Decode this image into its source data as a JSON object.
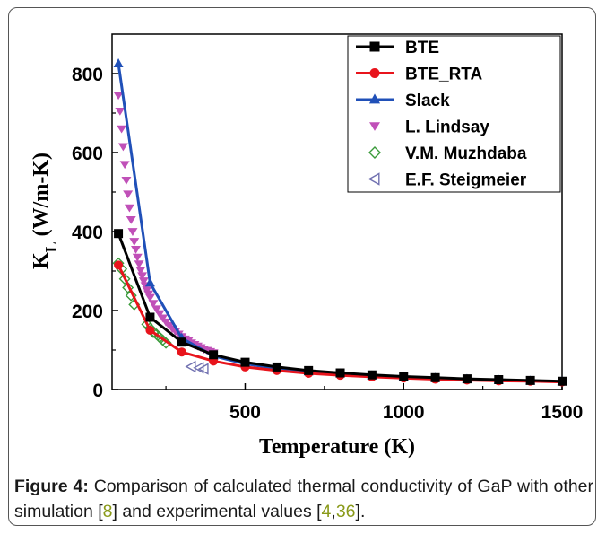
{
  "chart_data": {
    "type": "line",
    "xlabel": "Temperature (K)",
    "ylabel_main": "K",
    "ylabel_sub": "L",
    "ylabel_unit": " (W/m-K)",
    "xlim": [
      80,
      1500
    ],
    "ylim": [
      0,
      900
    ],
    "xticks": [
      500,
      1000,
      1500
    ],
    "yticks": [
      0,
      200,
      400,
      600,
      800
    ],
    "legend_position": "top-right",
    "series": [
      {
        "name": "BTE",
        "color": "#000000",
        "marker": "square",
        "style": "line",
        "x": [
          100,
          200,
          300,
          400,
          500,
          600,
          700,
          800,
          900,
          1000,
          1100,
          1200,
          1300,
          1400,
          1500
        ],
        "y": [
          395,
          183,
          120,
          88,
          69,
          57,
          48,
          42,
          37,
          33,
          30,
          27,
          25,
          23,
          21
        ]
      },
      {
        "name": "BTE_RTA",
        "color": "#e8141c",
        "marker": "circle",
        "style": "line",
        "x": [
          100,
          200,
          300,
          400,
          500,
          600,
          700,
          800,
          900,
          1000,
          1100,
          1200,
          1300,
          1400,
          1500
        ],
        "y": [
          315,
          150,
          95,
          72,
          57,
          48,
          41,
          36,
          32,
          29,
          26,
          24,
          22,
          21,
          19
        ]
      },
      {
        "name": "Slack",
        "color": "#2050b8",
        "marker": "triangle-up",
        "style": "line",
        "x": [
          100,
          200,
          300,
          400,
          500,
          600,
          700,
          800,
          900,
          1000,
          1100,
          1200,
          1300,
          1400,
          1500
        ],
        "y": [
          825,
          270,
          130,
          85,
          65,
          53,
          45,
          40,
          35,
          32,
          29,
          26,
          24,
          22,
          20
        ]
      },
      {
        "name": "L. Lindsay",
        "color": "#c050b8",
        "marker": "triangle-down",
        "style": "scatter",
        "x": [
          100,
          105,
          110,
          115,
          120,
          125,
          130,
          135,
          140,
          145,
          150,
          155,
          160,
          165,
          170,
          175,
          180,
          185,
          190,
          195,
          200,
          210,
          220,
          230,
          240,
          250,
          260,
          270,
          280,
          290,
          300,
          310,
          320,
          330,
          340,
          350,
          360,
          370,
          380,
          390,
          400
        ],
        "y": [
          745,
          705,
          660,
          615,
          570,
          530,
          495,
          460,
          430,
          400,
          375,
          355,
          335,
          318,
          302,
          288,
          275,
          263,
          252,
          242,
          233,
          218,
          204,
          192,
          181,
          171,
          162,
          154,
          147,
          140,
          134,
          128,
          123,
          118,
          114,
          110,
          106,
          102,
          99,
          96,
          93
        ]
      },
      {
        "name": "V.M. Muzhdaba",
        "color": "#3a9a3a",
        "marker": "diamond-open",
        "style": "scatter",
        "x": [
          100,
          110,
          120,
          130,
          140,
          150,
          190,
          200,
          210,
          220,
          230,
          240,
          250
        ],
        "y": [
          320,
          305,
          280,
          258,
          238,
          215,
          165,
          155,
          145,
          140,
          132,
          125,
          118
        ]
      },
      {
        "name": "E.F. Steigmeier",
        "color": "#7070b0",
        "marker": "triangle-left-open",
        "style": "scatter",
        "x": [
          330,
          355,
          370
        ],
        "y": [
          58,
          55,
          52
        ]
      }
    ]
  },
  "caption": {
    "label": "Figure 4:",
    "text_a": " Comparison of calculated thermal conductivity of GaP with other simulation [",
    "ref_a": "8",
    "text_b": "] and experimental values [",
    "ref_b": "4",
    "comma": ",",
    "ref_c": "36",
    "text_c": "]."
  }
}
